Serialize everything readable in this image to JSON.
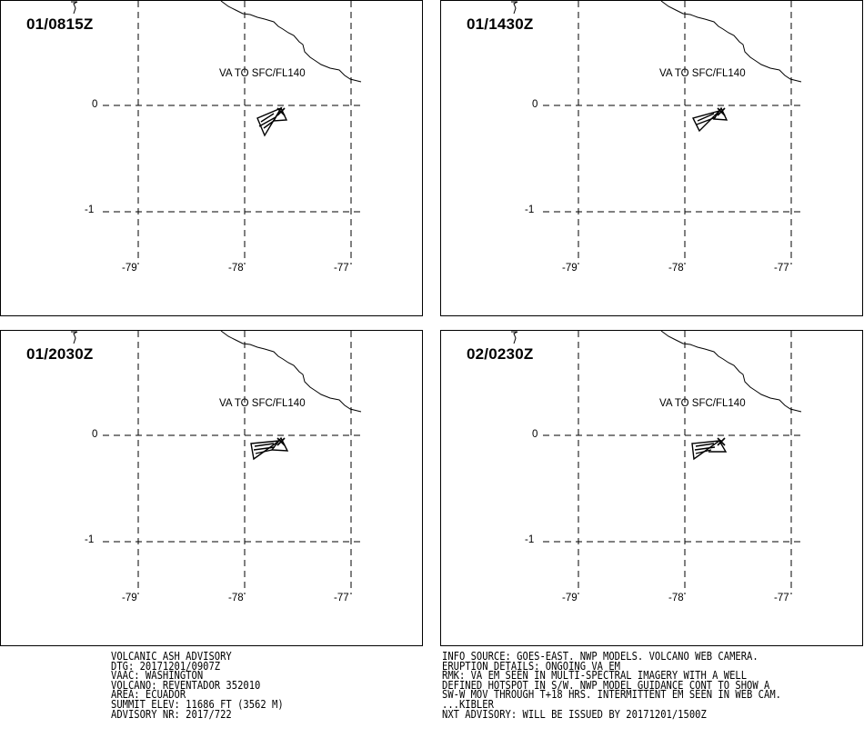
{
  "panels": [
    {
      "time": "01/0815Z",
      "va_label": "VA TO SFC/FL140"
    },
    {
      "time": "01/1430Z",
      "va_label": "VA TO SFC/FL140"
    },
    {
      "time": "01/2030Z",
      "va_label": "VA TO SFC/FL140"
    },
    {
      "time": "02/0230Z",
      "va_label": "VA TO SFC/FL140"
    }
  ],
  "map": {
    "lat_labels": [
      "0",
      "-1"
    ],
    "lon_labels": [
      "-79",
      "-78",
      "-77"
    ],
    "volcano_marker_icon": "x-mark-icon",
    "ash_polygon_icon": "ash-cloud-polygon-icon"
  },
  "advisory_left": {
    "line1": "VOLCANIC ASH ADVISORY",
    "line2": "DTG: 20171201/0907Z",
    "line3": "VAAC: WASHINGTON",
    "line4": "VOLCANO: REVENTADOR 352010",
    "line5": "AREA: ECUADOR",
    "line6": "SUMMIT ELEV: 11686 FT (3562 M)",
    "line7": "ADVISORY NR: 2017/722"
  },
  "advisory_right": {
    "line1": "INFO SOURCE: GOES-EAST. NWP MODELS. VOLCANO WEB CAMERA.",
    "line2": "ERUPTION DETAILS: ONGOING VA EM",
    "line3": "RMK: VA EM SEEN IN MULTI-SPECTRAL IMAGERY WITH A WELL",
    "line4": "DEFINED HOTSPOT IN S/W. NWP MODEL GUIDANCE CONT TO SHOW A",
    "line5": "SW-W MOV THROUGH T+18 HRS. INTERMITTENT EM SEEN IN WEB CAM.",
    "line6": "...KIBLER",
    "line7": "NXT ADVISORY: WILL BE ISSUED BY 20171201/1500Z"
  }
}
